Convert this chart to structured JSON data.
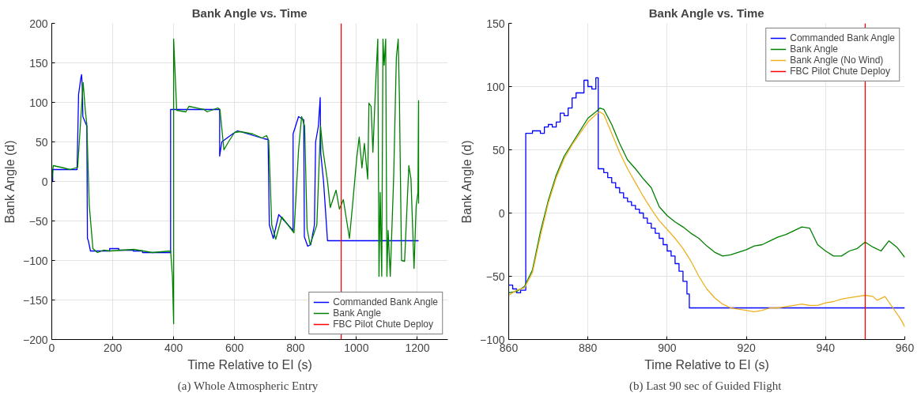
{
  "chart_data": [
    {
      "type": "line",
      "title": "Bank Angle vs. Time",
      "xlabel": "Time Relative to EI (s)",
      "ylabel": "Bank Angle (d)",
      "annotations": [
        "(a)  Whole Atmospheric Entry"
      ],
      "xlim": [
        0,
        1300
      ],
      "ylim": [
        -200,
        200
      ],
      "xticks": [
        0,
        200,
        400,
        600,
        800,
        1000,
        1200
      ],
      "yticks": [
        -200,
        -150,
        -100,
        -50,
        0,
        50,
        100,
        150,
        200
      ],
      "grid": true,
      "legend": "bottom right",
      "series": [
        {
          "name": "Commanded Bank Angle",
          "color": "#0000ff",
          "x": [
            0,
            3,
            3,
            83,
            88,
            95,
            98,
            100,
            102,
            115,
            117,
            120,
            127,
            190,
            190,
            220,
            220,
            267,
            267,
            298,
            298,
            390,
            390,
            551,
            551,
            558,
            593,
            610,
            662,
            697,
            710,
            714,
            727,
            745,
            792,
            792,
            810,
            827,
            829,
            840,
            850,
            862,
            866,
            875,
            881,
            883,
            892,
            905,
            1204
          ],
          "values": [
            0,
            0,
            15,
            15,
            110,
            130,
            135,
            120,
            82,
            70,
            -72,
            -75,
            -88,
            -88,
            -85,
            -85,
            -87,
            -87,
            -88,
            -88,
            -90,
            -90,
            91,
            91,
            32,
            50,
            60,
            64,
            58,
            54,
            53,
            -55,
            -72,
            -42,
            -62,
            60,
            82,
            78,
            -70,
            -82,
            -80,
            -55,
            50,
            70,
            106,
            35,
            0,
            -75,
            -75
          ]
        },
        {
          "name": "Bank Angle",
          "color": "#008000",
          "x": [
            0,
            5,
            40,
            60,
            85,
            97,
            103,
            110,
            115,
            123,
            135,
            150,
            170,
            190,
            230,
            270,
            330,
            390,
            396,
            400,
            400,
            410,
            440,
            450,
            500,
            510,
            545,
            552,
            565,
            580,
            600,
            620,
            660,
            690,
            705,
            712,
            722,
            735,
            755,
            785,
            795,
            810,
            820,
            830,
            838,
            848,
            870,
            882,
            890,
            905,
            914,
            933,
            944,
            957,
            966,
            977,
            987,
            1001,
            1009,
            1018,
            1026,
            1037,
            1041,
            1048,
            1054,
            1063,
            1070,
            1074,
            1078,
            1083,
            1087,
            1091,
            1096,
            1100,
            1104,
            1111,
            1122,
            1131,
            1137,
            1141,
            1148,
            1158,
            1172,
            1179,
            1189,
            1196,
            1202,
            1204,
            1204
          ],
          "values": [
            0,
            20,
            17,
            15,
            18,
            90,
            125,
            90,
            72,
            -30,
            -85,
            -90,
            -87,
            -88,
            -87,
            -86,
            -90,
            -88,
            -120,
            -180,
            180,
            90,
            88,
            95,
            91,
            88,
            93,
            91,
            40,
            50,
            62,
            63,
            60,
            55,
            58,
            52,
            -55,
            -73,
            -45,
            -60,
            -65,
            40,
            82,
            70,
            -60,
            -80,
            -55,
            70,
            40,
            0,
            -33,
            -11,
            -35,
            -23,
            -45,
            -72,
            -31,
            30,
            56,
            17,
            48,
            3,
            99,
            95,
            37,
            123,
            180,
            -120,
            -14,
            -120,
            180,
            147,
            180,
            -120,
            -62,
            -120,
            3,
            157,
            180,
            106,
            -100,
            -101,
            20,
            3,
            -110,
            -31,
            -14,
            102,
            -28
          ]
        }
      ],
      "ref_lines": [
        {
          "axis": "x",
          "value": 950,
          "label": "FBC Pilot Chute Deploy",
          "color": "#ff0000"
        }
      ]
    },
    {
      "type": "line",
      "title": "Bank Angle vs. Time",
      "xlabel": "Time Relative to EI (s)",
      "ylabel": "Bank Angle (d)",
      "annotations": [
        "(b)  Last 90 sec of Guided Flight"
      ],
      "xlim": [
        860,
        960
      ],
      "ylim": [
        -100,
        150
      ],
      "xticks": [
        860,
        880,
        900,
        920,
        940,
        960
      ],
      "yticks": [
        -100,
        -50,
        0,
        50,
        100,
        150
      ],
      "grid": true,
      "legend": "top right",
      "series": [
        {
          "name": "Commanded Bank Angle",
          "type": "step",
          "color": "#0000ff",
          "x": [
            860,
            861,
            862,
            863,
            864.3,
            866,
            868,
            869,
            870,
            871,
            872,
            873,
            874,
            875,
            876,
            877,
            879,
            880,
            881,
            882,
            882.6,
            884,
            885,
            886,
            887,
            888,
            889,
            890,
            891,
            892,
            893,
            894,
            895,
            896,
            897,
            898,
            899,
            900,
            901,
            902,
            903,
            904,
            905,
            905.6,
            960
          ],
          "values": [
            -57,
            -60,
            -63,
            -61,
            63,
            65,
            63,
            68,
            70,
            68,
            72,
            79,
            77,
            83,
            91,
            95,
            105,
            100,
            98,
            107,
            35,
            32,
            28,
            24,
            20,
            16,
            12,
            9,
            6,
            3,
            0,
            -4,
            -8,
            -12,
            -16,
            -20,
            -25,
            -30,
            -34,
            -40,
            -46,
            -54,
            -64,
            -75,
            -75
          ]
        },
        {
          "name": "Bank Angle",
          "color": "#008000",
          "x": [
            860,
            862,
            864,
            866,
            868,
            870,
            872,
            874,
            876,
            878,
            880,
            882,
            883,
            884,
            886,
            888,
            890,
            892,
            894,
            896,
            898,
            900,
            902,
            904,
            906,
            908,
            910,
            912,
            914,
            916,
            918,
            920,
            922,
            924,
            926,
            928,
            930,
            932,
            934,
            936,
            938,
            940,
            942,
            944,
            946,
            948,
            950,
            952,
            954,
            956,
            958,
            960
          ],
          "values": [
            -63,
            -62,
            -58,
            -45,
            -15,
            10,
            30,
            45,
            55,
            65,
            75,
            80,
            83,
            82,
            70,
            55,
            42,
            35,
            27,
            20,
            5,
            -2,
            -7,
            -11,
            -16,
            -20,
            -26,
            -31,
            -34,
            -33,
            -31,
            -29,
            -26,
            -25,
            -22,
            -19,
            -17,
            -14,
            -11,
            -12,
            -25,
            -30,
            -34,
            -34,
            -30,
            -28,
            -23,
            -27,
            -30,
            -22,
            -27,
            -35
          ]
        },
        {
          "name": "Bank Angle (No Wind)",
          "color": "#edb120",
          "x": [
            860,
            862,
            864,
            866,
            868,
            870,
            872,
            874,
            876,
            878,
            880,
            882,
            883,
            884,
            886,
            888,
            890,
            892,
            894,
            896,
            898,
            900,
            902,
            904,
            906,
            908,
            910,
            912,
            914,
            916,
            918,
            920,
            922,
            924,
            926,
            928,
            930,
            932,
            934,
            936,
            938,
            940,
            942,
            944,
            946,
            948,
            950,
            952,
            953,
            955,
            957,
            959,
            960
          ],
          "values": [
            -65,
            -61,
            -59,
            -47,
            -18,
            8,
            28,
            43,
            54,
            63,
            72,
            78,
            80,
            78,
            63,
            48,
            35,
            24,
            13,
            3,
            -6,
            -13,
            -20,
            -28,
            -38,
            -50,
            -60,
            -67,
            -72,
            -75,
            -76,
            -77,
            -78,
            -77,
            -75,
            -75,
            -74,
            -73,
            -72,
            -73,
            -73,
            -71,
            -70,
            -68,
            -67,
            -66,
            -65,
            -66,
            -69,
            -66,
            -75,
            -84,
            -90
          ]
        }
      ],
      "ref_lines": [
        {
          "axis": "x",
          "value": 950,
          "label": "FBC Pilot Chute Deploy",
          "color": "#ff0000"
        }
      ]
    }
  ]
}
